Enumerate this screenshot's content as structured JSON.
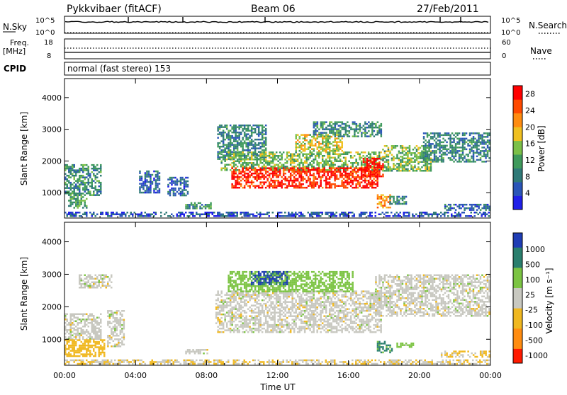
{
  "header": {
    "radar": "Pykkvibaer (fitACF)",
    "beam": "Beam 06",
    "date": "27/Feb/2011",
    "cpid_label": "CPID",
    "cpid_text": "normal (fast stereo) 153"
  },
  "strip": {
    "nsky_label": "N.Sky",
    "nsearch_label": "N.Search",
    "nsky_ticks": [
      "10^5",
      "10^0"
    ],
    "nsearch_ticks": [
      "10^5",
      "10^0"
    ],
    "freq_label": "Freq.",
    "freq_unit": "[MHz]",
    "freq_ticks": [
      "18",
      "8"
    ],
    "nave_label": "Nave",
    "nave_ticks": [
      "60",
      "0"
    ]
  },
  "colors": {
    "power": [
      "#2020e8",
      "#2a55b8",
      "#2f7a78",
      "#3f9a5c",
      "#7cc048",
      "#f0c020",
      "#ff8c10",
      "#ff4a00",
      "#ff0000"
    ],
    "velocity": {
      "pos_strong": "#1f3db5",
      "pos_med": "#2a7f6e",
      "pos_low": "#7cc443",
      "near_zero": "#c8c8c0",
      "neg_low": "#f0b820",
      "neg_med": "#ff8c10",
      "neg_strong": "#ff1a00"
    }
  },
  "chart_data": [
    {
      "type": "heatmap",
      "name": "power-panel",
      "ylabel": "Slant Range [km]",
      "ylim": [
        200,
        4600
      ],
      "xlim": [
        0,
        24
      ],
      "yticks": [
        "1000",
        "2000",
        "3000",
        "4000"
      ],
      "xticks": [
        "00:00",
        "04:00",
        "08:00",
        "12:00",
        "16:00",
        "20:00",
        "00:00"
      ],
      "colorbar": {
        "label": "Power [dB]",
        "ticks": [
          "4",
          "8",
          "12",
          "16",
          "20",
          "24",
          "28"
        ],
        "range": [
          0,
          30
        ]
      },
      "regions": [
        {
          "x": [
            0.0,
            2.0
          ],
          "y": [
            900,
            1900
          ],
          "level": 10
        },
        {
          "x": [
            0.2,
            1.2
          ],
          "y": [
            550,
            1000
          ],
          "level": 12
        },
        {
          "x": [
            4.2,
            5.3
          ],
          "y": [
            1000,
            1700
          ],
          "level": 6
        },
        {
          "x": [
            5.8,
            6.9
          ],
          "y": [
            900,
            1500
          ],
          "level": 6
        },
        {
          "x": [
            6.8,
            8.2
          ],
          "y": [
            500,
            700
          ],
          "level": 10
        },
        {
          "x": [
            8.6,
            11.3
          ],
          "y": [
            2050,
            3150
          ],
          "level": 9
        },
        {
          "x": [
            8.8,
            17.8
          ],
          "y": [
            1700,
            2300
          ],
          "level": 14
        },
        {
          "x": [
            9.4,
            17.6
          ],
          "y": [
            1150,
            1800
          ],
          "level": 27
        },
        {
          "x": [
            13.0,
            15.6
          ],
          "y": [
            2300,
            2850
          ],
          "level": 17
        },
        {
          "x": [
            14.0,
            17.8
          ],
          "y": [
            2750,
            3250
          ],
          "level": 10
        },
        {
          "x": [
            16.8,
            17.9
          ],
          "y": [
            1500,
            2100
          ],
          "level": 29
        },
        {
          "x": [
            17.9,
            20.6
          ],
          "y": [
            1700,
            2500
          ],
          "level": 14
        },
        {
          "x": [
            17.6,
            18.3
          ],
          "y": [
            550,
            950
          ],
          "level": 22
        },
        {
          "x": [
            18.3,
            19.2
          ],
          "y": [
            650,
            900
          ],
          "level": 9
        },
        {
          "x": [
            20.2,
            23.9
          ],
          "y": [
            2000,
            2900
          ],
          "level": 9
        },
        {
          "x": [
            21.4,
            23.9
          ],
          "y": [
            450,
            650
          ],
          "level": 7
        },
        {
          "x": [
            0.0,
            23.9
          ],
          "y": [
            250,
            400
          ],
          "level": 5
        }
      ]
    },
    {
      "type": "heatmap",
      "name": "velocity-panel",
      "xlabel": "Time UT",
      "ylabel": "Slant Range [km]",
      "ylim": [
        200,
        4600
      ],
      "xlim": [
        0,
        24
      ],
      "yticks": [
        "1000",
        "2000",
        "3000",
        "4000"
      ],
      "xticks": [
        "00:00",
        "04:00",
        "08:00",
        "12:00",
        "16:00",
        "20:00",
        "00:00"
      ],
      "colorbar": {
        "label": "Velocity [m s⁻¹]",
        "ticks": [
          "1000",
          "500",
          "100",
          "25",
          "-25",
          "-100",
          "-500",
          "-1000"
        ],
        "range": [
          -1200,
          1200
        ]
      },
      "regions": [
        {
          "x": [
            0.0,
            2.0
          ],
          "y": [
            1000,
            1800
          ],
          "vel": 0
        },
        {
          "x": [
            0.0,
            2.2
          ],
          "y": [
            500,
            1000
          ],
          "vel": -200
        },
        {
          "x": [
            2.4,
            3.3
          ],
          "y": [
            800,
            1900
          ],
          "vel": 0
        },
        {
          "x": [
            0.8,
            2.6
          ],
          "y": [
            2600,
            3000
          ],
          "vel": 0
        },
        {
          "x": [
            6.8,
            8.0
          ],
          "y": [
            550,
            700
          ],
          "vel": 0
        },
        {
          "x": [
            8.5,
            17.8
          ],
          "y": [
            1200,
            2500
          ],
          "vel": 0
        },
        {
          "x": [
            9.2,
            16.2
          ],
          "y": [
            2500,
            3100
          ],
          "vel": 150
        },
        {
          "x": [
            10.5,
            12.5
          ],
          "y": [
            2700,
            3100
          ],
          "vel": 800
        },
        {
          "x": [
            17.5,
            23.9
          ],
          "y": [
            1700,
            3000
          ],
          "vel": 0
        },
        {
          "x": [
            17.6,
            18.4
          ],
          "y": [
            600,
            950
          ],
          "vel": 400
        },
        {
          "x": [
            18.7,
            19.6
          ],
          "y": [
            750,
            900
          ],
          "vel": 80
        },
        {
          "x": [
            21.2,
            23.9
          ],
          "y": [
            450,
            650
          ],
          "vel": -60
        },
        {
          "x": [
            0.0,
            23.9
          ],
          "y": [
            250,
            380
          ],
          "vel": -30
        }
      ]
    }
  ]
}
